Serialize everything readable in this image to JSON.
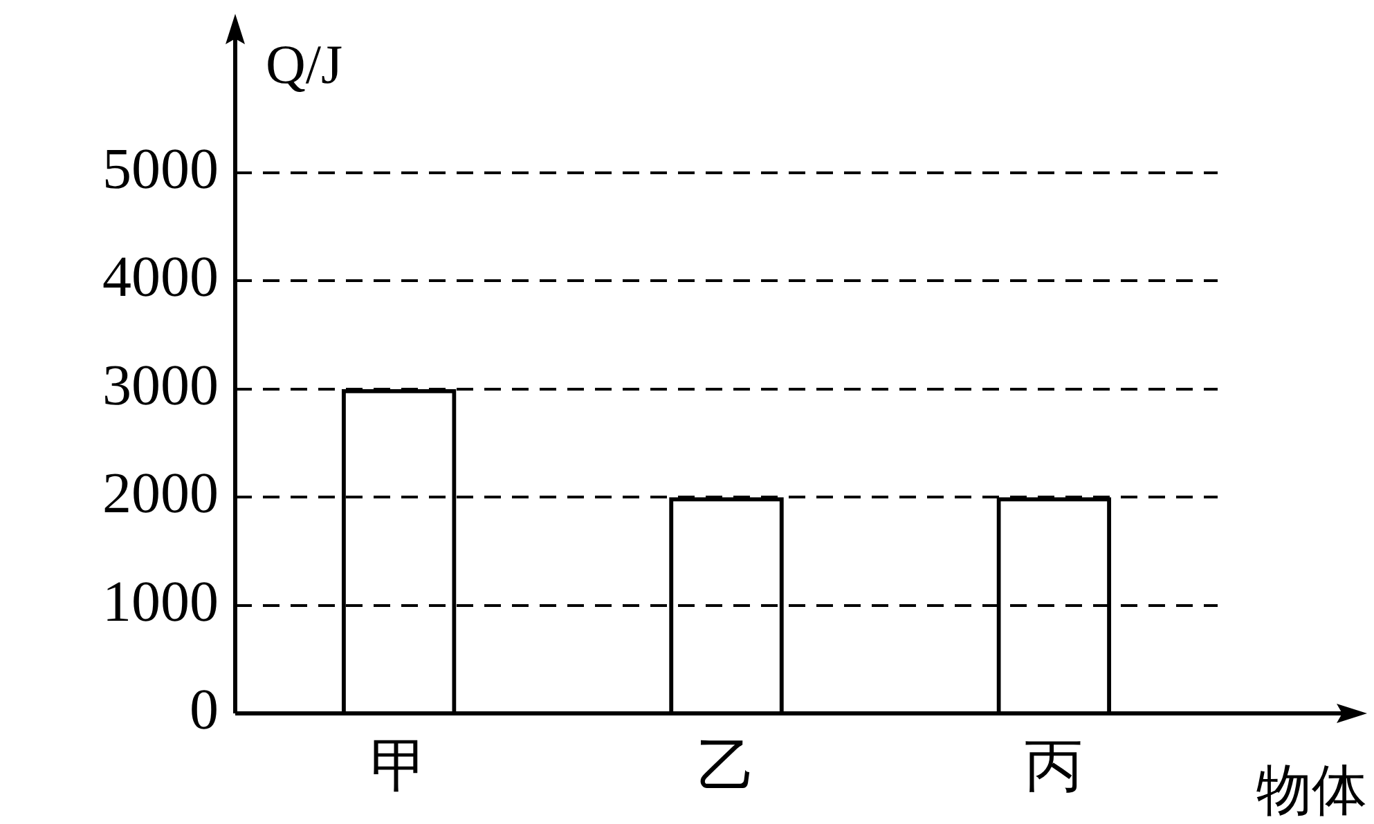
{
  "chart_data": {
    "type": "bar",
    "xlabel": "物体",
    "ylabel": "Q/J",
    "categories": [
      "甲",
      "乙",
      "丙"
    ],
    "values": [
      3000,
      2000,
      2000
    ],
    "color": "#000000",
    "ylim": [
      0,
      5000
    ],
    "yticks": [
      0,
      1000,
      2000,
      3000,
      4000,
      5000
    ],
    "grid": "y",
    "legend": false
  }
}
